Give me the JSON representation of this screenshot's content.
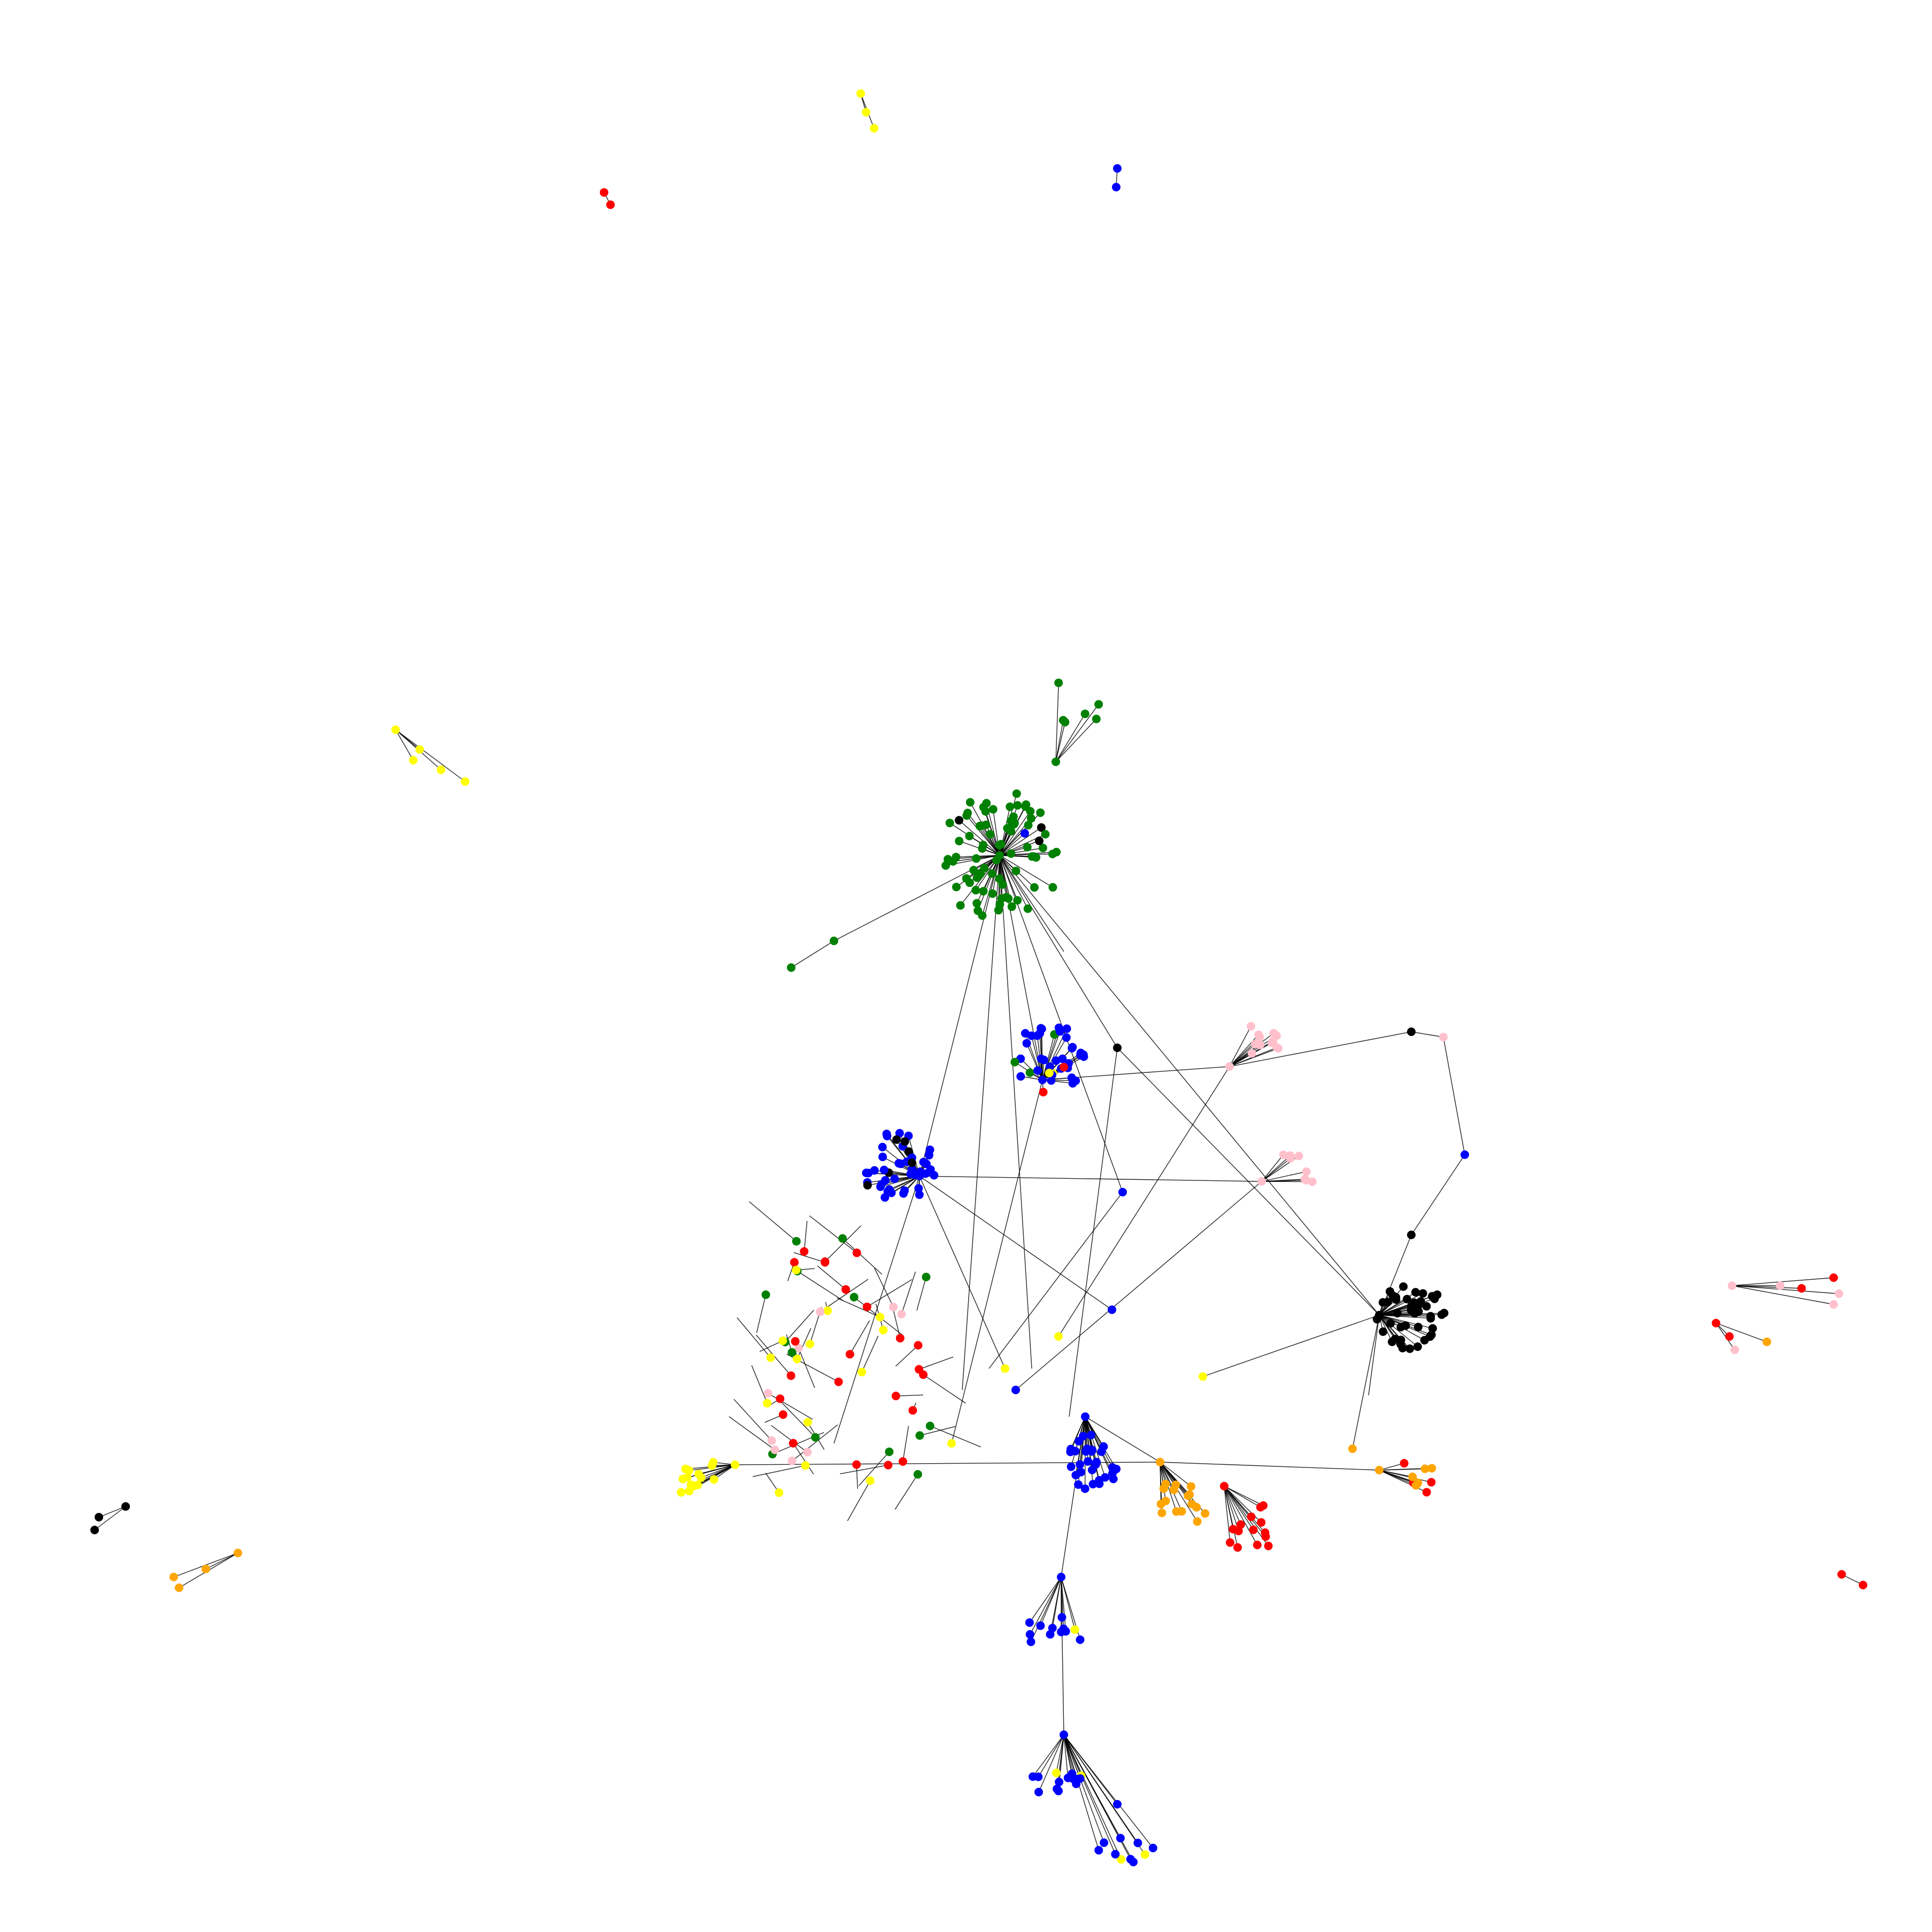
{
  "palette": {
    "green": "#008000",
    "blue": "#0000ff",
    "black": "#000000",
    "red": "#ff0000",
    "pink": "#ffc0cb",
    "yellow": "#ffff00",
    "orange": "#ffa500"
  },
  "graph": {
    "type": "network",
    "labels": "none",
    "edge_color": "#000000",
    "background": "#ffffff",
    "clusters": [
      {
        "name": "green-hub",
        "color": "green",
        "hub_count": 1,
        "leaf_count": 80
      },
      {
        "name": "green-small-fan",
        "color": "green",
        "hub_count": 1,
        "leaf_count": 6
      },
      {
        "name": "blue-upper-hub",
        "color": "blue",
        "hub_count": 1,
        "leaf_count": 40
      },
      {
        "name": "blue-left-hub",
        "color": "blue",
        "hub_count": 1,
        "leaf_count": 45
      },
      {
        "name": "black-right-hub",
        "color": "black",
        "hub_count": 2,
        "leaf_count": 45
      },
      {
        "name": "pink-upper-fan",
        "color": "pink",
        "hub_count": 1,
        "leaf_count": 12
      },
      {
        "name": "pink-mid-fan",
        "color": "pink",
        "hub_count": 1,
        "leaf_count": 8
      },
      {
        "name": "red-left-scatter",
        "color": "red",
        "hub_count": 0,
        "leaf_count": 60
      },
      {
        "name": "yellow-left-fan",
        "color": "yellow",
        "hub_count": 1,
        "leaf_count": 14
      },
      {
        "name": "blue-lower-hub",
        "color": "blue",
        "hub_count": 1,
        "leaf_count": 30
      },
      {
        "name": "orange-lower-fan",
        "color": "orange",
        "hub_count": 1,
        "leaf_count": 16
      },
      {
        "name": "red-lower-fan",
        "color": "red",
        "hub_count": 1,
        "leaf_count": 14
      },
      {
        "name": "orange-right-fan",
        "color": "orange",
        "hub_count": 1,
        "leaf_count": 10
      },
      {
        "name": "blue-bottom-chain",
        "color": "blue",
        "hub_count": 3,
        "leaf_count": 36
      }
    ],
    "isolated_components": [
      {
        "name": "yellow-top-pair",
        "colors": [
          "yellow",
          "yellow",
          "yellow"
        ]
      },
      {
        "name": "red-top-pair",
        "colors": [
          "red",
          "red"
        ]
      },
      {
        "name": "blue-top-pair",
        "colors": [
          "blue",
          "blue"
        ]
      },
      {
        "name": "yellow-left-group",
        "colors": [
          "yellow",
          "yellow",
          "yellow",
          "yellow",
          "yellow"
        ]
      },
      {
        "name": "black-bottom-left-pair",
        "colors": [
          "black",
          "black",
          "black"
        ]
      },
      {
        "name": "orange-bottom-left-chain",
        "colors": [
          "orange",
          "orange",
          "orange",
          "orange"
        ]
      },
      {
        "name": "pink-right-group",
        "colors": [
          "pink",
          "pink",
          "red",
          "red",
          "pink",
          "pink"
        ]
      },
      {
        "name": "red-right-chain",
        "colors": [
          "red",
          "red",
          "pink",
          "orange"
        ]
      },
      {
        "name": "red-bottom-right-pair",
        "colors": [
          "red",
          "red"
        ]
      }
    ]
  }
}
